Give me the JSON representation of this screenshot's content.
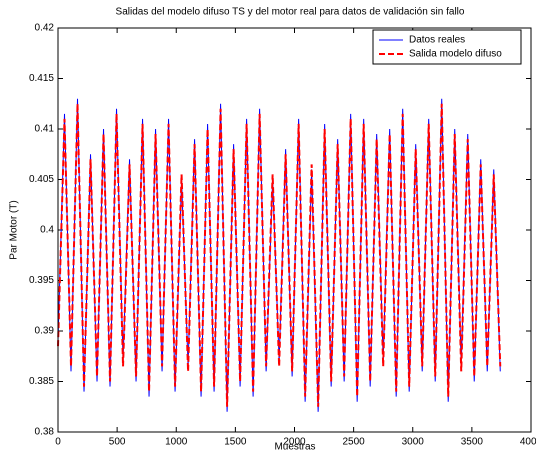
{
  "chart_data": {
    "type": "line",
    "title": "Salidas del modelo difuso TS y del motor real para datos de validación sin fallo",
    "x_label": "Muestras",
    "y_label": "Par Motor (T)",
    "x": [
      0,
      55,
      110,
      165,
      220,
      275,
      330,
      385,
      440,
      495,
      550,
      605,
      660,
      715,
      770,
      825,
      880,
      935,
      990,
      1045,
      1100,
      1155,
      1210,
      1265,
      1320,
      1375,
      1430,
      1485,
      1540,
      1595,
      1650,
      1705,
      1760,
      1815,
      1870,
      1925,
      1980,
      2035,
      2090,
      2145,
      2200,
      2255,
      2310,
      2365,
      2420,
      2475,
      2530,
      2585,
      2640,
      2695,
      2750,
      2805,
      2860,
      2915,
      2970,
      3025,
      3080,
      3135,
      3190,
      3245,
      3300,
      3355,
      3410,
      3465,
      3520,
      3575,
      3630,
      3685,
      3740
    ],
    "series": [
      {
        "name": "Datos reales",
        "color": "#0000ff",
        "style": "solid",
        "values": [
          0.389,
          0.4115,
          0.386,
          0.413,
          0.384,
          0.4075,
          0.385,
          0.41,
          0.3845,
          0.412,
          0.387,
          0.407,
          0.385,
          0.411,
          0.3835,
          0.41,
          0.386,
          0.411,
          0.384,
          0.405,
          0.3865,
          0.409,
          0.3835,
          0.4105,
          0.384,
          0.4125,
          0.382,
          0.4085,
          0.3845,
          0.411,
          0.3835,
          0.412,
          0.386,
          0.405,
          0.387,
          0.408,
          0.3855,
          0.411,
          0.383,
          0.406,
          0.382,
          0.4105,
          0.3845,
          0.409,
          0.385,
          0.4115,
          0.383,
          0.411,
          0.3845,
          0.4095,
          0.387,
          0.41,
          0.3835,
          0.412,
          0.384,
          0.4085,
          0.386,
          0.411,
          0.385,
          0.413,
          0.383,
          0.41,
          0.3865,
          0.4095,
          0.385,
          0.407,
          0.386,
          0.406,
          0.386
        ]
      },
      {
        "name": "Salida modelo difuso",
        "color": "#ff0000",
        "style": "dashed",
        "values": [
          0.3885,
          0.411,
          0.3865,
          0.4125,
          0.3845,
          0.407,
          0.3855,
          0.4095,
          0.385,
          0.4115,
          0.3865,
          0.4065,
          0.3855,
          0.4105,
          0.384,
          0.4095,
          0.3865,
          0.4105,
          0.3845,
          0.4055,
          0.386,
          0.4085,
          0.384,
          0.41,
          0.3845,
          0.412,
          0.3825,
          0.408,
          0.385,
          0.4105,
          0.384,
          0.4115,
          0.3865,
          0.4055,
          0.3865,
          0.4075,
          0.386,
          0.4105,
          0.3835,
          0.4065,
          0.3825,
          0.41,
          0.385,
          0.4085,
          0.3855,
          0.411,
          0.3835,
          0.4105,
          0.385,
          0.409,
          0.3865,
          0.4095,
          0.384,
          0.4115,
          0.3845,
          0.408,
          0.3865,
          0.4105,
          0.3855,
          0.4125,
          0.3835,
          0.4095,
          0.386,
          0.409,
          0.3855,
          0.4065,
          0.3865,
          0.4055,
          0.3865
        ]
      }
    ],
    "xlim": [
      0,
      4000
    ],
    "ylim": [
      0.38,
      0.42
    ],
    "xticks": [
      0,
      500,
      1000,
      1500,
      2000,
      2500,
      3000,
      3500,
      4000
    ],
    "yticks": [
      0.38,
      0.385,
      0.39,
      0.395,
      0.4,
      0.405,
      0.41,
      0.415,
      0.42
    ],
    "legend": "top-right",
    "grid": false
  }
}
